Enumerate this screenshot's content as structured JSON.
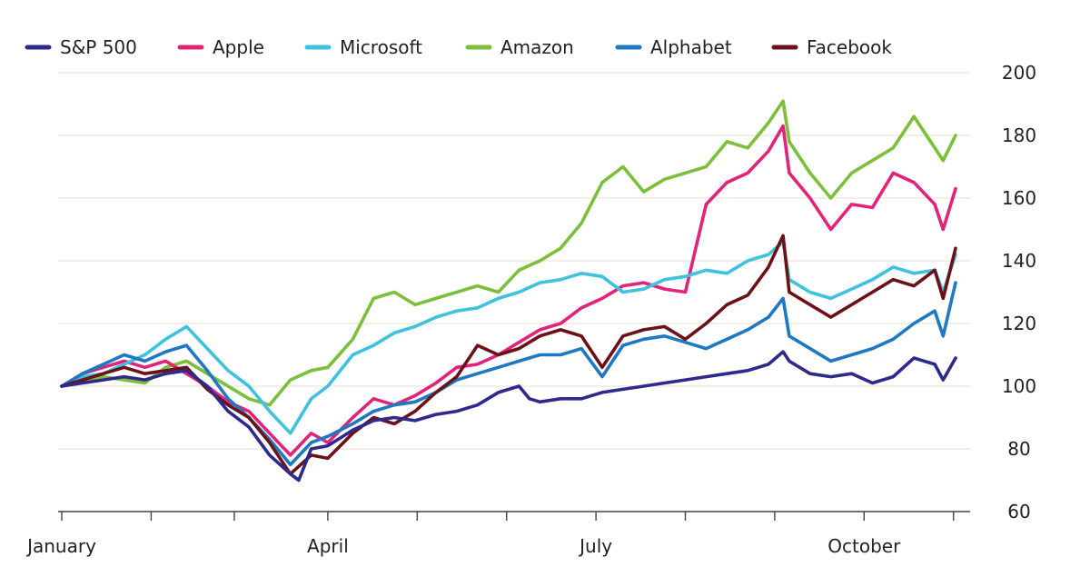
{
  "chart_data": {
    "type": "line",
    "title": "",
    "xlabel": "",
    "ylabel": "",
    "x_range": [
      0,
      43
    ],
    "x_unit": "weeks since 1 January",
    "ylim": [
      60,
      200
    ],
    "y_ticks": [
      60,
      80,
      100,
      120,
      140,
      160,
      180,
      200
    ],
    "grid": true,
    "legend_position": "top",
    "x_tick_positions": [
      0,
      4.3,
      8.3,
      12.8,
      17.1,
      21.4,
      25.7,
      30,
      34.3,
      38.6,
      42.9
    ],
    "x_tick_labels": [
      {
        "label": "January",
        "x": 0
      },
      {
        "label": "April",
        "x": 12.8
      },
      {
        "label": "July",
        "x": 25.7
      },
      {
        "label": "October",
        "x": 38.6
      }
    ],
    "series": [
      {
        "name": "S&P 500",
        "color": "#2e2a8c",
        "values": [
          [
            0,
            100
          ],
          [
            1,
            101
          ],
          [
            2,
            102
          ],
          [
            3,
            103
          ],
          [
            4,
            102
          ],
          [
            5,
            104
          ],
          [
            6,
            105
          ],
          [
            7,
            100
          ],
          [
            8,
            92
          ],
          [
            9,
            87
          ],
          [
            10,
            78
          ],
          [
            11,
            72
          ],
          [
            11.4,
            70
          ],
          [
            12,
            80
          ],
          [
            12.8,
            81
          ],
          [
            14,
            86
          ],
          [
            15,
            89
          ],
          [
            16,
            90
          ],
          [
            17,
            89
          ],
          [
            18,
            91
          ],
          [
            19,
            92
          ],
          [
            20,
            94
          ],
          [
            21,
            98
          ],
          [
            22,
            100
          ],
          [
            22.5,
            96
          ],
          [
            23,
            95
          ],
          [
            24,
            96
          ],
          [
            25,
            96
          ],
          [
            26,
            98
          ],
          [
            27,
            99
          ],
          [
            28,
            100
          ],
          [
            29,
            101
          ],
          [
            30,
            102
          ],
          [
            31,
            103
          ],
          [
            32,
            104
          ],
          [
            33,
            105
          ],
          [
            34,
            107
          ],
          [
            34.7,
            111
          ],
          [
            35,
            108
          ],
          [
            36,
            104
          ],
          [
            37,
            103
          ],
          [
            38,
            104
          ],
          [
            39,
            101
          ],
          [
            40,
            103
          ],
          [
            41,
            109
          ],
          [
            42,
            107
          ],
          [
            42.4,
            102
          ],
          [
            43,
            109
          ]
        ]
      },
      {
        "name": "Apple",
        "color": "#e0247a",
        "values": [
          [
            0,
            100
          ],
          [
            1,
            104
          ],
          [
            2,
            106
          ],
          [
            3,
            108
          ],
          [
            4,
            106
          ],
          [
            5,
            108
          ],
          [
            6,
            104
          ],
          [
            7,
            100
          ],
          [
            8,
            95
          ],
          [
            9,
            92
          ],
          [
            10,
            85
          ],
          [
            11,
            78
          ],
          [
            12,
            85
          ],
          [
            12.8,
            82
          ],
          [
            14,
            90
          ],
          [
            15,
            96
          ],
          [
            16,
            94
          ],
          [
            17,
            97
          ],
          [
            18,
            101
          ],
          [
            19,
            106
          ],
          [
            20,
            107
          ],
          [
            21,
            110
          ],
          [
            22,
            114
          ],
          [
            23,
            118
          ],
          [
            24,
            120
          ],
          [
            25,
            125
          ],
          [
            26,
            128
          ],
          [
            27,
            132
          ],
          [
            28,
            133
          ],
          [
            29,
            131
          ],
          [
            30,
            130
          ],
          [
            31,
            158
          ],
          [
            32,
            165
          ],
          [
            33,
            168
          ],
          [
            34,
            175
          ],
          [
            34.7,
            183
          ],
          [
            35,
            168
          ],
          [
            36,
            160
          ],
          [
            37,
            150
          ],
          [
            38,
            158
          ],
          [
            39,
            157
          ],
          [
            40,
            168
          ],
          [
            41,
            165
          ],
          [
            42,
            158
          ],
          [
            42.4,
            150
          ],
          [
            43,
            163
          ]
        ]
      },
      {
        "name": "Microsoft",
        "color": "#3fc1df",
        "values": [
          [
            0,
            100
          ],
          [
            1,
            103
          ],
          [
            2,
            104
          ],
          [
            3,
            107
          ],
          [
            4,
            110
          ],
          [
            5,
            115
          ],
          [
            6,
            119
          ],
          [
            7,
            112
          ],
          [
            8,
            105
          ],
          [
            9,
            100
          ],
          [
            10,
            92
          ],
          [
            11,
            85
          ],
          [
            12,
            96
          ],
          [
            12.8,
            100
          ],
          [
            14,
            110
          ],
          [
            15,
            113
          ],
          [
            16,
            117
          ],
          [
            17,
            119
          ],
          [
            18,
            122
          ],
          [
            19,
            124
          ],
          [
            20,
            125
          ],
          [
            21,
            128
          ],
          [
            22,
            130
          ],
          [
            23,
            133
          ],
          [
            24,
            134
          ],
          [
            25,
            136
          ],
          [
            26,
            135
          ],
          [
            27,
            130
          ],
          [
            28,
            131
          ],
          [
            29,
            134
          ],
          [
            30,
            135
          ],
          [
            31,
            137
          ],
          [
            32,
            136
          ],
          [
            33,
            140
          ],
          [
            34,
            142
          ],
          [
            34.7,
            146
          ],
          [
            35,
            134
          ],
          [
            36,
            130
          ],
          [
            37,
            128
          ],
          [
            38,
            131
          ],
          [
            39,
            134
          ],
          [
            40,
            138
          ],
          [
            41,
            136
          ],
          [
            42,
            137
          ],
          [
            42.4,
            130
          ],
          [
            43,
            142
          ]
        ]
      },
      {
        "name": "Amazon",
        "color": "#7bbf3a",
        "values": [
          [
            0,
            100
          ],
          [
            1,
            102
          ],
          [
            2,
            103
          ],
          [
            3,
            102
          ],
          [
            4,
            101
          ],
          [
            5,
            106
          ],
          [
            6,
            108
          ],
          [
            7,
            104
          ],
          [
            8,
            100
          ],
          [
            9,
            96
          ],
          [
            10,
            94
          ],
          [
            11,
            102
          ],
          [
            12,
            105
          ],
          [
            12.8,
            106
          ],
          [
            14,
            115
          ],
          [
            15,
            128
          ],
          [
            16,
            130
          ],
          [
            17,
            126
          ],
          [
            18,
            128
          ],
          [
            19,
            130
          ],
          [
            20,
            132
          ],
          [
            21,
            130
          ],
          [
            22,
            137
          ],
          [
            23,
            140
          ],
          [
            24,
            144
          ],
          [
            25,
            152
          ],
          [
            26,
            165
          ],
          [
            27,
            170
          ],
          [
            28,
            162
          ],
          [
            29,
            166
          ],
          [
            30,
            168
          ],
          [
            31,
            170
          ],
          [
            32,
            178
          ],
          [
            33,
            176
          ],
          [
            34,
            184
          ],
          [
            34.7,
            191
          ],
          [
            35,
            178
          ],
          [
            36,
            168
          ],
          [
            37,
            160
          ],
          [
            38,
            168
          ],
          [
            39,
            172
          ],
          [
            40,
            176
          ],
          [
            41,
            186
          ],
          [
            42,
            176
          ],
          [
            42.4,
            172
          ],
          [
            43,
            180
          ]
        ]
      },
      {
        "name": "Alphabet",
        "color": "#1e78c2",
        "values": [
          [
            0,
            100
          ],
          [
            1,
            104
          ],
          [
            2,
            107
          ],
          [
            3,
            110
          ],
          [
            4,
            108
          ],
          [
            5,
            111
          ],
          [
            6,
            113
          ],
          [
            7,
            105
          ],
          [
            8,
            96
          ],
          [
            9,
            90
          ],
          [
            10,
            83
          ],
          [
            11,
            75
          ],
          [
            12,
            82
          ],
          [
            12.8,
            84
          ],
          [
            14,
            88
          ],
          [
            15,
            92
          ],
          [
            16,
            94
          ],
          [
            17,
            95
          ],
          [
            18,
            98
          ],
          [
            19,
            102
          ],
          [
            20,
            104
          ],
          [
            21,
            106
          ],
          [
            22,
            108
          ],
          [
            23,
            110
          ],
          [
            24,
            110
          ],
          [
            25,
            112
          ],
          [
            26,
            103
          ],
          [
            27,
            113
          ],
          [
            28,
            115
          ],
          [
            29,
            116
          ],
          [
            30,
            114
          ],
          [
            31,
            112
          ],
          [
            32,
            115
          ],
          [
            33,
            118
          ],
          [
            34,
            122
          ],
          [
            34.7,
            128
          ],
          [
            35,
            116
          ],
          [
            36,
            112
          ],
          [
            37,
            108
          ],
          [
            38,
            110
          ],
          [
            39,
            112
          ],
          [
            40,
            115
          ],
          [
            41,
            120
          ],
          [
            42,
            124
          ],
          [
            42.4,
            116
          ],
          [
            43,
            133
          ]
        ]
      },
      {
        "name": "Facebook",
        "color": "#6b1219",
        "values": [
          [
            0,
            100
          ],
          [
            1,
            102
          ],
          [
            2,
            104
          ],
          [
            3,
            106
          ],
          [
            4,
            104
          ],
          [
            5,
            105
          ],
          [
            6,
            106
          ],
          [
            7,
            99
          ],
          [
            8,
            94
          ],
          [
            9,
            90
          ],
          [
            10,
            82
          ],
          [
            11,
            72
          ],
          [
            12,
            78
          ],
          [
            12.8,
            77
          ],
          [
            14,
            85
          ],
          [
            15,
            90
          ],
          [
            16,
            88
          ],
          [
            17,
            92
          ],
          [
            18,
            98
          ],
          [
            19,
            103
          ],
          [
            20,
            113
          ],
          [
            21,
            110
          ],
          [
            22,
            112
          ],
          [
            23,
            116
          ],
          [
            24,
            118
          ],
          [
            25,
            116
          ],
          [
            26,
            106
          ],
          [
            27,
            116
          ],
          [
            28,
            118
          ],
          [
            29,
            119
          ],
          [
            30,
            115
          ],
          [
            31,
            120
          ],
          [
            32,
            126
          ],
          [
            33,
            129
          ],
          [
            34,
            138
          ],
          [
            34.7,
            148
          ],
          [
            35,
            130
          ],
          [
            36,
            126
          ],
          [
            37,
            122
          ],
          [
            38,
            126
          ],
          [
            39,
            130
          ],
          [
            40,
            134
          ],
          [
            41,
            132
          ],
          [
            42,
            137
          ],
          [
            42.4,
            128
          ],
          [
            43,
            144
          ]
        ]
      }
    ]
  }
}
